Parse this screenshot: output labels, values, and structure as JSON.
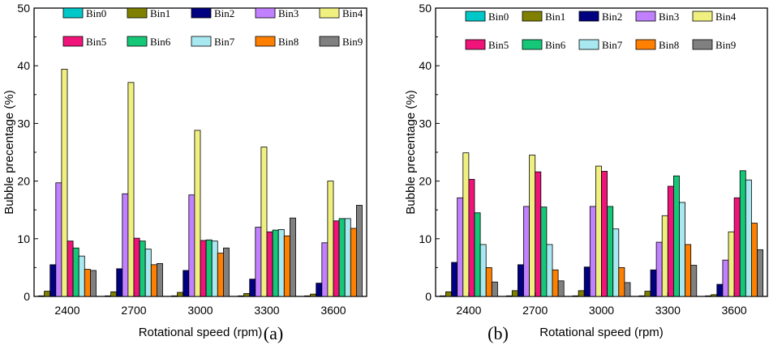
{
  "chart_data": [
    {
      "type": "bar",
      "panel_label": "(a)",
      "xlabel": "Rotational  speed (rpm)",
      "ylabel": "Bubble precentage (%)",
      "ylim": [
        0,
        50
      ],
      "yticks": [
        "0",
        "10",
        "20",
        "30",
        "40",
        "50"
      ],
      "categories": [
        "2400",
        "2700",
        "3000",
        "3300",
        "3600"
      ],
      "legend_position": "top",
      "series": [
        {
          "name": "Bin0",
          "color": "#00c8c8",
          "values": [
            0.1,
            0.1,
            0.1,
            0.1,
            0.1
          ]
        },
        {
          "name": "Bin1",
          "color": "#808000",
          "values": [
            0.9,
            0.8,
            0.7,
            0.5,
            0.4
          ]
        },
        {
          "name": "Bin2",
          "color": "#000080",
          "values": [
            5.5,
            4.8,
            4.5,
            3.0,
            2.3
          ]
        },
        {
          "name": "Bin3",
          "color": "#c080ff",
          "values": [
            19.7,
            17.8,
            17.6,
            12.0,
            9.3
          ]
        },
        {
          "name": "Bin4",
          "color": "#f0f080",
          "values": [
            39.4,
            37.1,
            28.8,
            25.9,
            20.0
          ]
        },
        {
          "name": "Bin5",
          "color": "#f0147a",
          "values": [
            9.6,
            10.1,
            9.7,
            11.2,
            13.1
          ]
        },
        {
          "name": "Bin6",
          "color": "#14c878",
          "values": [
            8.4,
            9.6,
            9.8,
            11.5,
            13.5
          ]
        },
        {
          "name": "Bin7",
          "color": "#a8e8f0",
          "values": [
            7.0,
            8.2,
            9.6,
            11.6,
            13.5
          ]
        },
        {
          "name": "Bin8",
          "color": "#ff8000",
          "values": [
            4.7,
            5.5,
            7.5,
            10.5,
            11.8
          ]
        },
        {
          "name": "Bin9",
          "color": "#808080",
          "values": [
            4.5,
            5.7,
            8.4,
            13.6,
            15.8
          ]
        }
      ]
    },
    {
      "type": "bar",
      "panel_label": "(b)",
      "xlabel": "Rotational  speed (rpm)",
      "ylabel": "Bubble precentage (%)",
      "ylim": [
        0,
        50
      ],
      "yticks": [
        "0",
        "10",
        "20",
        "30",
        "40",
        "50"
      ],
      "categories": [
        "2400",
        "2700",
        "3000",
        "3300",
        "3600"
      ],
      "legend_position": "top",
      "series": [
        {
          "name": "Bin0",
          "color": "#00c8c8",
          "values": [
            0.1,
            0.1,
            0.1,
            0.1,
            0.1
          ]
        },
        {
          "name": "Bin1",
          "color": "#808000",
          "values": [
            0.8,
            1.0,
            1.0,
            0.9,
            0.3
          ]
        },
        {
          "name": "Bin2",
          "color": "#000080",
          "values": [
            5.9,
            5.5,
            5.1,
            4.6,
            2.1
          ]
        },
        {
          "name": "Bin3",
          "color": "#c080ff",
          "values": [
            17.1,
            15.6,
            15.6,
            9.4,
            6.3
          ]
        },
        {
          "name": "Bin4",
          "color": "#f0f080",
          "values": [
            24.9,
            24.5,
            22.6,
            14.0,
            11.2
          ]
        },
        {
          "name": "Bin5",
          "color": "#f0147a",
          "values": [
            20.3,
            21.6,
            21.7,
            19.1,
            17.1
          ]
        },
        {
          "name": "Bin6",
          "color": "#14c878",
          "values": [
            14.5,
            15.5,
            15.6,
            20.9,
            21.8
          ]
        },
        {
          "name": "Bin7",
          "color": "#a8e8f0",
          "values": [
            9.0,
            9.0,
            11.7,
            16.3,
            20.2
          ]
        },
        {
          "name": "Bin8",
          "color": "#ff8000",
          "values": [
            5.0,
            4.6,
            5.0,
            9.0,
            12.7
          ]
        },
        {
          "name": "Bin9",
          "color": "#808080",
          "values": [
            2.5,
            2.7,
            2.4,
            5.4,
            8.1
          ]
        }
      ]
    }
  ]
}
